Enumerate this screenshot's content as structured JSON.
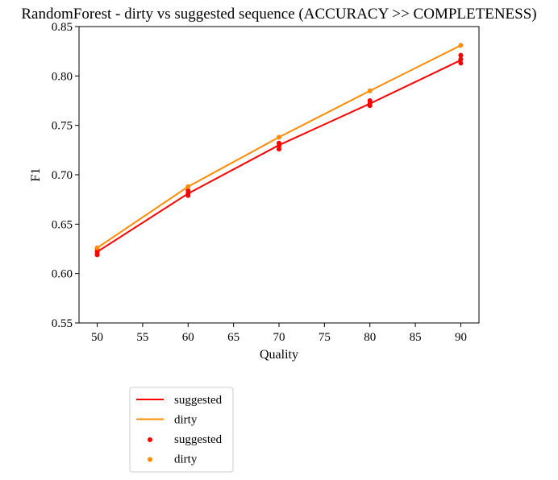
{
  "chart_data": {
    "type": "line",
    "title": "RandomForest - dirty vs suggested sequence (ACCURACY >> COMPLETENESS)",
    "xlabel": "Quality",
    "ylabel": "F1",
    "xlim": [
      48,
      92
    ],
    "ylim": [
      0.55,
      0.85
    ],
    "xticks": [
      "50",
      "55",
      "60",
      "65",
      "70",
      "75",
      "80",
      "85",
      "90"
    ],
    "yticks": [
      "0.55",
      "0.60",
      "0.65",
      "0.70",
      "0.75",
      "0.80",
      "0.85"
    ],
    "grid": false,
    "legend_placement": "below-left",
    "colors": {
      "suggested": "#ff0000",
      "dirty": "#ff8c00"
    },
    "lines": [
      {
        "name": "suggested",
        "x": [
          50,
          60,
          70,
          80,
          90
        ],
        "y": [
          0.622,
          0.681,
          0.73,
          0.772,
          0.816
        ]
      },
      {
        "name": "dirty",
        "x": [
          50,
          60,
          70,
          80,
          90
        ],
        "y": [
          0.626,
          0.688,
          0.738,
          0.785,
          0.831
        ]
      }
    ],
    "scatter": [
      {
        "name": "suggested",
        "points": [
          [
            50,
            0.619
          ],
          [
            50,
            0.622
          ],
          [
            50,
            0.625
          ],
          [
            60,
            0.679
          ],
          [
            60,
            0.681
          ],
          [
            60,
            0.684
          ],
          [
            70,
            0.726
          ],
          [
            70,
            0.729
          ],
          [
            70,
            0.732
          ],
          [
            80,
            0.77
          ],
          [
            80,
            0.772
          ],
          [
            80,
            0.775
          ],
          [
            90,
            0.813
          ],
          [
            90,
            0.817
          ],
          [
            90,
            0.821
          ]
        ]
      },
      {
        "name": "dirty",
        "points": [
          [
            50,
            0.626
          ],
          [
            60,
            0.688
          ],
          [
            70,
            0.738
          ],
          [
            80,
            0.785
          ],
          [
            90,
            0.831
          ]
        ]
      }
    ],
    "legend": [
      {
        "kind": "line",
        "series": "suggested",
        "label": "suggested"
      },
      {
        "kind": "line",
        "series": "dirty",
        "label": "dirty"
      },
      {
        "kind": "marker",
        "series": "suggested",
        "label": "suggested"
      },
      {
        "kind": "marker",
        "series": "dirty",
        "label": "dirty"
      }
    ]
  }
}
